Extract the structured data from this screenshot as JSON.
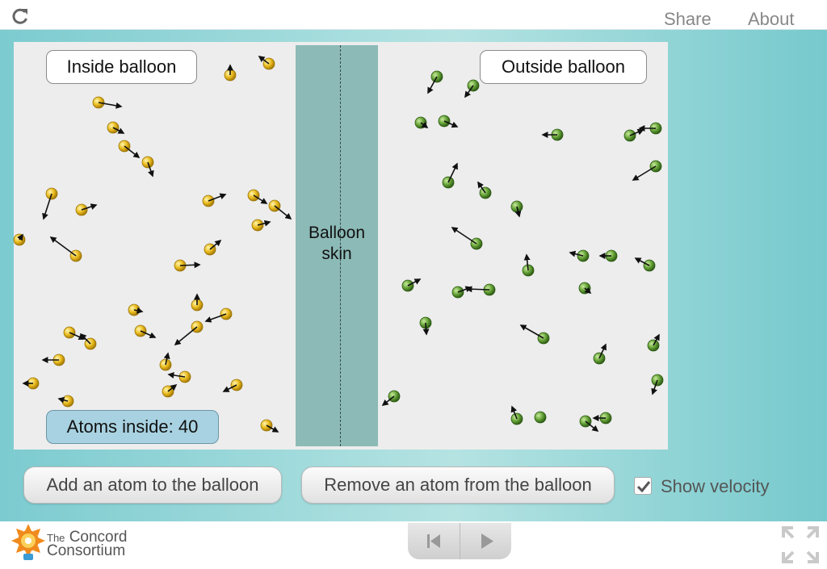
{
  "header": {
    "share_label": "Share",
    "about_label": "About"
  },
  "simulation": {
    "inside_label": "Inside balloon",
    "outside_label": "Outside balloon",
    "membrane_label_line1": "Balloon",
    "membrane_label_line2": "skin",
    "atoms_inside_prefix": "Atoms inside: ",
    "atoms_inside_count": "40",
    "atoms_inside_text": "Atoms inside: 40",
    "inside_atom_color": "#e7b617",
    "outside_atom_color": "#5f9d32"
  },
  "controls": {
    "add_button_label": "Add an atom to the balloon",
    "remove_button_label": "Remove an atom from the balloon",
    "show_velocity_label": "Show velocity",
    "show_velocity_checked": true
  },
  "footer": {
    "logo_the": "The",
    "logo_concord": "Concord",
    "logo_consortium": "Consortium"
  },
  "colors": {
    "stage_accent": "#7ccbd0",
    "membrane": "#8cbab6",
    "count_box": "#a8d2e1"
  }
}
